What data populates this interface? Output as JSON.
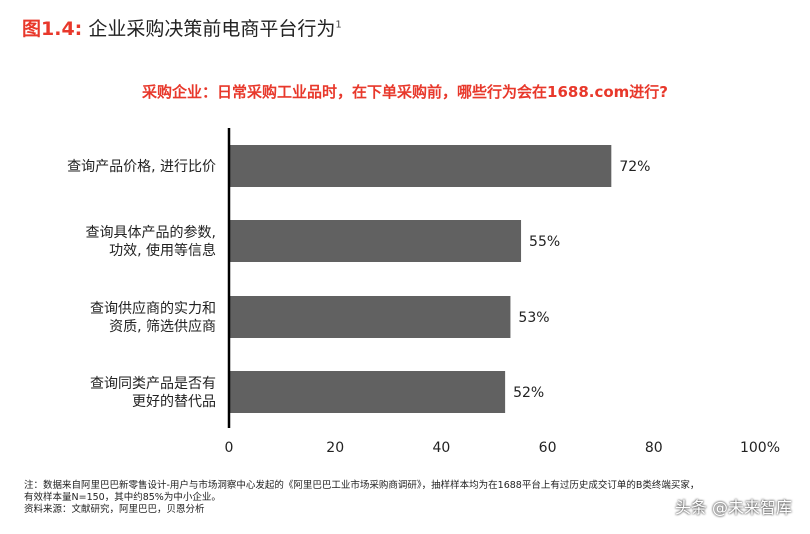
{
  "figure": {
    "label": "图1.4:",
    "title": "企业采购决策前电商平台行为",
    "superscript": "1"
  },
  "chart_data": {
    "type": "bar",
    "orientation": "horizontal",
    "question": "采购企业：日常采购工业品时，在下单采购前，哪些行为会在1688.com进行?",
    "categories": [
      [
        "查询产品价格, 进行比价"
      ],
      [
        "查询具体产品的参数,",
        "功效, 使用等信息"
      ],
      [
        "查询供应商的实力和",
        "资质, 筛选供应商"
      ],
      [
        "查询同类产品是否有",
        "更好的替代品"
      ]
    ],
    "values": [
      72,
      55,
      53,
      52
    ],
    "value_labels": [
      "72%",
      "55%",
      "53%",
      "52%"
    ],
    "xlim": [
      0,
      100
    ],
    "ticks": [
      0,
      20,
      40,
      60,
      80,
      100
    ],
    "tick_labels": [
      "0",
      "20",
      "40",
      "60",
      "80",
      "100%"
    ],
    "bar_color": "#616161",
    "grid": false
  },
  "footnote": {
    "line1": "注：数据来自阿里巴巴新零售设计-用户与市场洞察中心发起的《阿里巴巴工业市场采购商调研》，抽样样本均为在1688平台上有过历史成交订单的B类终端买家，",
    "line2": "有效样本量N=150，其中约85%为中小企业。",
    "line3": "资料来源：文献研究，阿里巴巴，贝恩分析"
  },
  "watermark": "头条 @未来智库",
  "colors": {
    "accent": "#e8382b",
    "bar": "#616161",
    "axis": "#000000"
  }
}
